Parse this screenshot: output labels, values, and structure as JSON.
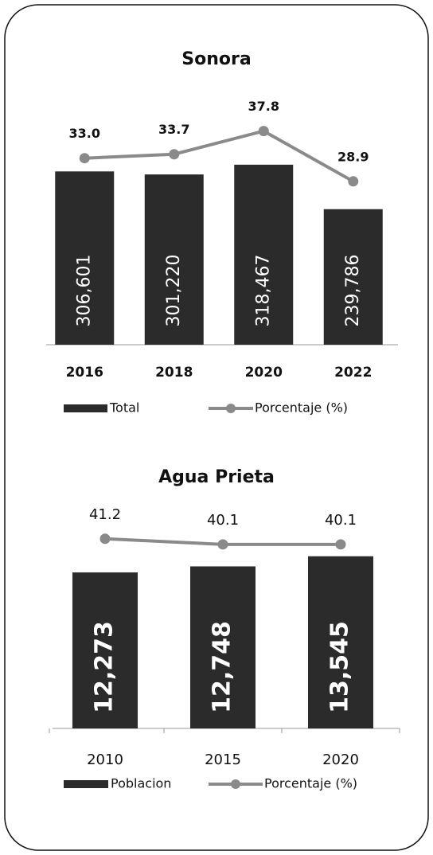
{
  "chart_data": [
    {
      "type": "bar",
      "title": "Sonora",
      "categories": [
        "2016",
        "2018",
        "2020",
        "2022"
      ],
      "series": [
        {
          "name": "Total",
          "type": "bar",
          "color": "#2b2b2b",
          "values": [
            306601,
            301220,
            318467,
            239786
          ],
          "value_labels": [
            "306,601",
            "301,220",
            "318,467",
            "239,786"
          ]
        },
        {
          "name": "Porcentaje (%)",
          "type": "line",
          "axis": "y2",
          "color": "#8a8a8a",
          "values": [
            33.0,
            33.7,
            37.8,
            28.9
          ],
          "value_labels": [
            "33.0",
            "33.7",
            "37.8",
            "28.9"
          ]
        }
      ],
      "ylim": [
        0,
        400000
      ],
      "y2lim": [
        0,
        40
      ],
      "legend": "bottom"
    },
    {
      "type": "bar",
      "title": "Agua Prieta",
      "categories": [
        "2010",
        "2015",
        "2020"
      ],
      "series": [
        {
          "name": "Poblacion",
          "type": "bar",
          "color": "#2b2b2b",
          "values": [
            12273,
            12748,
            13545
          ],
          "value_labels": [
            "12,273",
            "12,748",
            "13,545"
          ]
        },
        {
          "name": "Porcentaje (%)",
          "type": "line",
          "axis": "y2",
          "color": "#8a8a8a",
          "values": [
            41.2,
            40.1,
            40.1
          ]
        }
      ],
      "ylim": [
        0,
        15000
      ],
      "y2lim": [
        4,
        41.4
      ],
      "legend": "bottom"
    }
  ]
}
